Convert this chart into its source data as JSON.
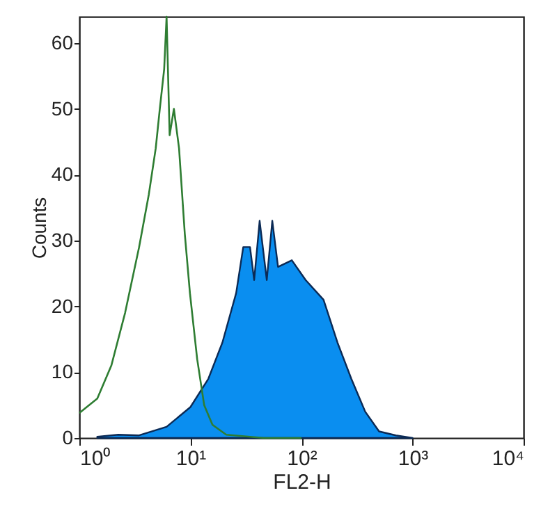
{
  "chart_data": {
    "type": "area",
    "xlabel": "FL2-H",
    "ylabel": "Counts",
    "log": "x",
    "xlim": [
      1,
      10000
    ],
    "xticks": [
      {
        "value": 1,
        "label": "10⁰"
      },
      {
        "value": 10,
        "label": "10¹"
      },
      {
        "value": 100,
        "label": "10²"
      },
      {
        "value": 1000,
        "label": "10³"
      },
      {
        "value": 10000,
        "label": "10⁴"
      }
    ],
    "ylim": [
      0,
      64
    ],
    "yticks": [
      0,
      10,
      20,
      30,
      40,
      50,
      60
    ],
    "grid": false,
    "series": [
      {
        "type": "line",
        "color": "#2e7d32",
        "x": [
          1.0,
          1.45,
          1.94,
          2.58,
          3.45,
          4.22,
          4.87,
          5.3,
          5.8,
          6.1,
          6.5,
          7.1,
          7.9,
          8.9,
          9.9,
          11.5,
          13.3,
          15.8,
          21,
          46,
          100
        ],
        "values": [
          3.8,
          6,
          11,
          19,
          29,
          37,
          44,
          50,
          56,
          64,
          46,
          50,
          44,
          31,
          22,
          12,
          5,
          2,
          0.5,
          0,
          0
        ]
      },
      {
        "color": "#0a8ef0",
        "x": [
          1.45,
          2.24,
          3.45,
          6.1,
          10,
          14.5,
          19.4,
          25.8,
          29.9,
          34.4,
          37.5,
          42,
          48.7,
          54.6,
          61.5,
          81.9,
          109,
          158,
          211,
          281,
          375,
          500,
          708,
          1000
        ],
        "values": [
          0.2,
          0.5,
          0.4,
          1.7,
          4.7,
          9,
          14.5,
          22,
          29,
          29,
          24,
          33,
          24,
          33,
          26,
          27,
          24,
          21,
          14.5,
          9,
          4,
          1,
          0.4,
          0
        ]
      }
    ]
  }
}
